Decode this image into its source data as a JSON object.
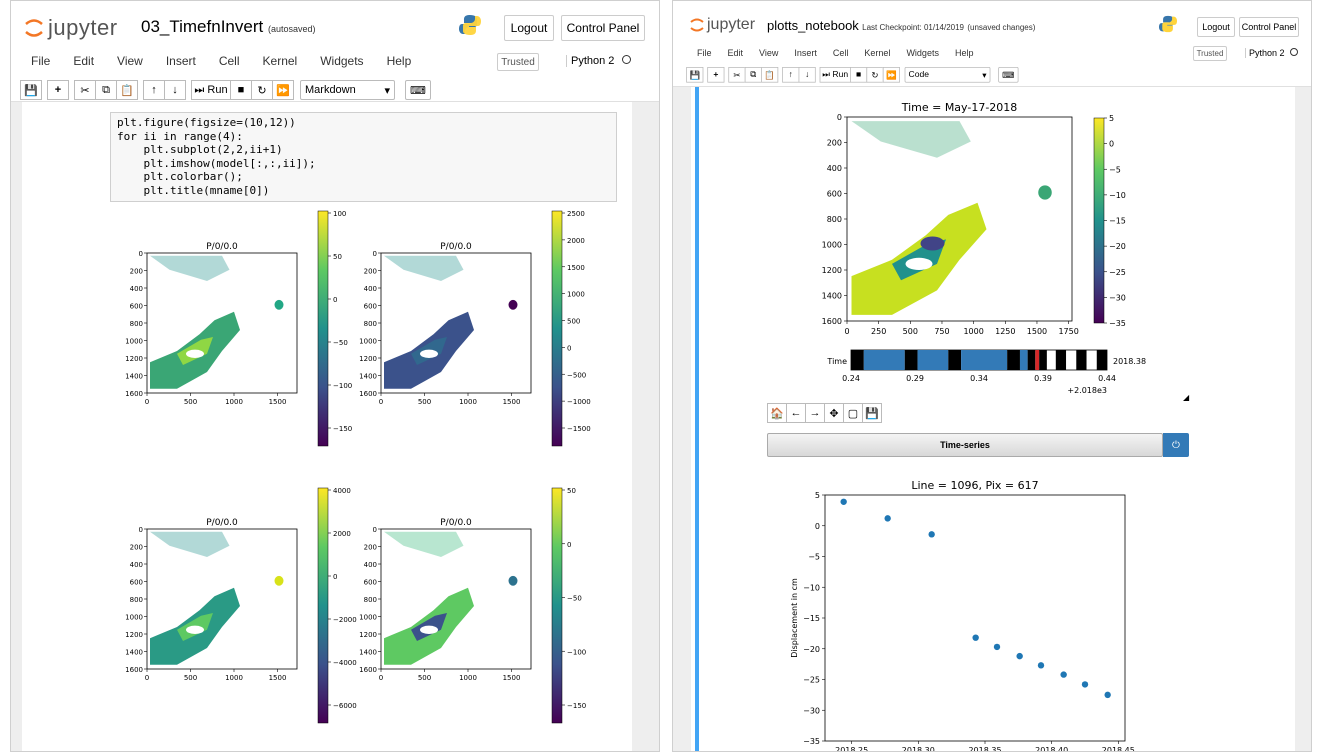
{
  "left": {
    "brand": "jupyter",
    "title": "03_TimefnInvert",
    "status": "(autosaved)",
    "logout": "Logout",
    "control_panel": "Control Panel",
    "menu": [
      "File",
      "Edit",
      "View",
      "Insert",
      "Cell",
      "Kernel",
      "Widgets",
      "Help"
    ],
    "trusted": "Trusted",
    "kernel": "Python 2",
    "run_label": "Run",
    "cell_type": "Markdown",
    "code": {
      "l1": "plt.figure(figsize=(10,12))",
      "l2": "for ii in range(4):",
      "l3": "    plt.subplot(2,2,ii+1)",
      "l4": "    plt.imshow(model[:,:,ii]);",
      "l5": "    plt.colorbar();",
      "l6": "    plt.title(mname[0])"
    },
    "subplot_title": "P/0/0.0",
    "y_ticks": [
      "0",
      "200",
      "400",
      "600",
      "800",
      "1000",
      "1200",
      "1400",
      "1600"
    ],
    "x_ticks": [
      "0",
      "500",
      "1000",
      "1500"
    ],
    "colorbars": [
      [
        "100",
        "50",
        "0",
        "−50",
        "−100",
        "−150"
      ],
      [
        "2500",
        "2000",
        "1500",
        "1000",
        "500",
        "0",
        "−500",
        "−1000",
        "−1500"
      ],
      [
        "4000",
        "2000",
        "0",
        "−2000",
        "−4000",
        "−6000"
      ],
      [
        "50",
        "0",
        "−50",
        "−100",
        "−150"
      ]
    ]
  },
  "right": {
    "brand": "jupyter",
    "title": "plotts_notebook",
    "checkpoint": "Last Checkpoint: 01/14/2019",
    "unsaved": "(unsaved changes)",
    "logout": "Logout",
    "control_panel": "Control Panel",
    "menu": [
      "File",
      "Edit",
      "View",
      "Insert",
      "Cell",
      "Kernel",
      "Widgets",
      "Help"
    ],
    "trusted": "Trusted",
    "kernel": "Python 2",
    "run_label": "Run",
    "cell_type": "Code",
    "map_title": "Time = May-17-2018",
    "map_y_ticks": [
      "0",
      "200",
      "400",
      "600",
      "800",
      "1000",
      "1200",
      "1400",
      "1600"
    ],
    "map_x_ticks": [
      "0",
      "250",
      "500",
      "750",
      "1000",
      "1250",
      "1500",
      "1750"
    ],
    "map_cbar": [
      "5",
      "0",
      "−5",
      "−10",
      "−15",
      "−20",
      "−25",
      "−30",
      "−35"
    ],
    "slider_label": "Time",
    "slider_value": "2018.38",
    "slider_ticks": [
      "0.24",
      "0.29",
      "0.34",
      "0.39",
      "0.44"
    ],
    "slider_offset": "+2.018e3",
    "timeseries_button": "Time-series",
    "ts_title": "Line = 1096, Pix = 617",
    "ts_ylabel": "Displacement in cm",
    "ts_y_ticks": [
      "5",
      "0",
      "−5",
      "−10",
      "−15",
      "−20",
      "−25",
      "−30",
      "−35"
    ],
    "ts_x_ticks": [
      "2018.25",
      "2018.30",
      "2018.35",
      "2018.40",
      "2018.45"
    ]
  },
  "chart_data": {
    "type": "scatter",
    "title": "Line = 1096, Pix = 617",
    "xlabel": "",
    "ylabel": "Displacement in cm",
    "xlim": [
      2018.23,
      2018.455
    ],
    "ylim": [
      -35,
      5
    ],
    "x": [
      2018.244,
      2018.277,
      2018.31,
      2018.343,
      2018.359,
      2018.376,
      2018.392,
      2018.409,
      2018.425,
      2018.442
    ],
    "y": [
      3.9,
      1.2,
      -1.4,
      -18.2,
      -19.7,
      -21.2,
      -22.7,
      -24.2,
      -25.8,
      -27.5
    ]
  },
  "colors": {
    "accent": "#337ab7",
    "point": "#1f77b4",
    "viridis_low": "#440154",
    "viridis_mid": "#21918c",
    "viridis_high": "#fde725"
  }
}
